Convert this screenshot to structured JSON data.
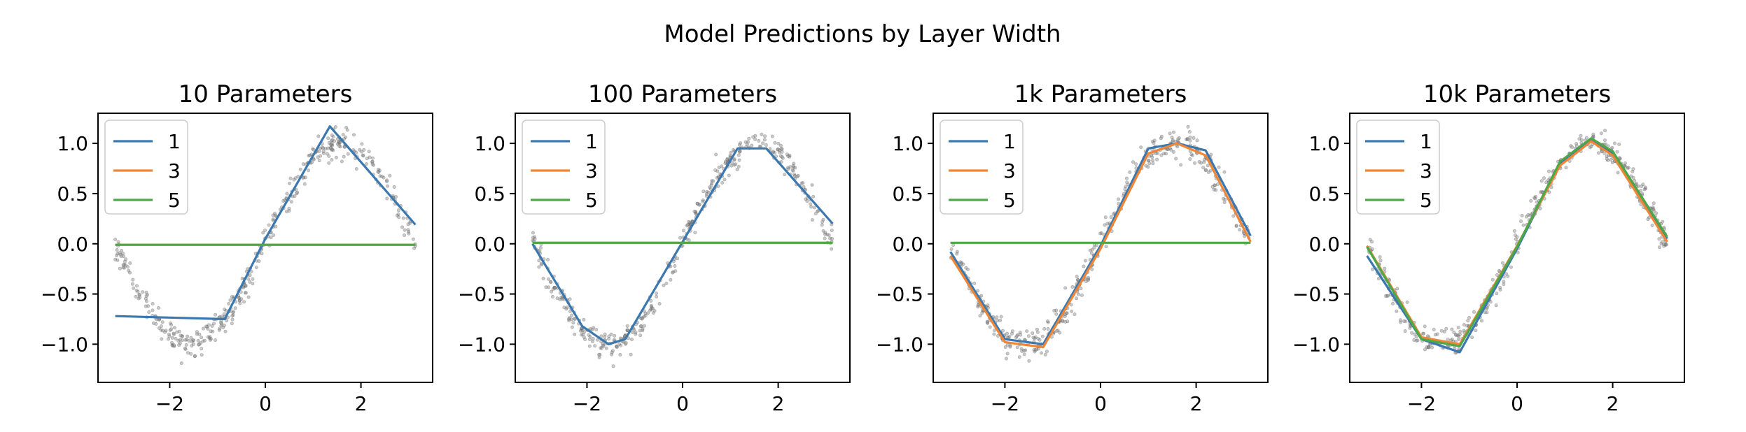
{
  "figure_title": "Model Predictions by Layer Width",
  "colors": {
    "1": "#3b78b0",
    "3": "#ef8636",
    "5": "#4da847",
    "scatter": "#666666"
  },
  "chart_data": [
    {
      "type": "line",
      "title": "10 Parameters",
      "xlim": [
        -3.5,
        3.5
      ],
      "ylim": [
        -1.38,
        1.3
      ],
      "xticks": [
        -2,
        0,
        2
      ],
      "xtick_labels": [
        "−2",
        "0",
        "2"
      ],
      "yticks": [
        -1.0,
        -0.5,
        0.0,
        0.5,
        1.0
      ],
      "ytick_labels": [
        "−1.0",
        "−0.5",
        "0.0",
        "0.5",
        "1.0"
      ],
      "legend": [
        "1",
        "3",
        "5"
      ],
      "background_scatter": "noisy samples of y = sin(x), x in [-pi, pi]",
      "series": [
        {
          "name": "1",
          "x": [
            -3.14,
            -0.85,
            0.0,
            1.35,
            3.14
          ],
          "y": [
            -0.72,
            -0.75,
            0.05,
            1.17,
            0.19
          ]
        },
        {
          "name": "3",
          "x": [
            -3.14,
            3.14
          ],
          "y": [
            -0.01,
            -0.01
          ]
        },
        {
          "name": "5",
          "x": [
            -3.14,
            3.14
          ],
          "y": [
            -0.01,
            -0.01
          ]
        }
      ]
    },
    {
      "type": "line",
      "title": "100 Parameters",
      "xlim": [
        -3.5,
        3.5
      ],
      "ylim": [
        -1.38,
        1.3
      ],
      "xticks": [
        -2,
        0,
        2
      ],
      "xtick_labels": [
        "−2",
        "0",
        "2"
      ],
      "yticks": [
        -1.0,
        -0.5,
        0.0,
        0.5,
        1.0
      ],
      "ytick_labels": [
        "−1.0",
        "−0.5",
        "0.0",
        "0.5",
        "1.0"
      ],
      "legend": [
        "1",
        "3",
        "5"
      ],
      "background_scatter": "noisy samples of y = sin(x), x in [-pi, pi]",
      "series": [
        {
          "name": "1",
          "x": [
            -3.14,
            -2.1,
            -1.55,
            -1.2,
            0.0,
            1.15,
            1.75,
            3.14
          ],
          "y": [
            0.0,
            -0.82,
            -1.0,
            -0.95,
            0.02,
            0.95,
            0.95,
            0.2
          ]
        },
        {
          "name": "3",
          "x": [
            -3.14,
            3.14
          ],
          "y": [
            0.01,
            0.01
          ]
        },
        {
          "name": "5",
          "x": [
            -3.14,
            3.14
          ],
          "y": [
            0.01,
            0.01
          ]
        }
      ]
    },
    {
      "type": "line",
      "title": "1k Parameters",
      "xlim": [
        -3.5,
        3.5
      ],
      "ylim": [
        -1.38,
        1.3
      ],
      "xticks": [
        -2,
        0,
        2
      ],
      "xtick_labels": [
        "−2",
        "0",
        "2"
      ],
      "yticks": [
        -1.0,
        -0.5,
        0.0,
        0.5,
        1.0
      ],
      "ytick_labels": [
        "−1.0",
        "−0.5",
        "0.0",
        "0.5",
        "1.0"
      ],
      "legend": [
        "1",
        "3",
        "5"
      ],
      "background_scatter": "noisy samples of y = sin(x), x in [-pi, pi]",
      "series": [
        {
          "name": "1",
          "x": [
            -3.14,
            -2.0,
            -1.2,
            0.0,
            1.0,
            1.6,
            2.2,
            3.14
          ],
          "y": [
            -0.08,
            -0.95,
            -1.0,
            -0.02,
            0.95,
            1.0,
            0.93,
            0.08
          ]
        },
        {
          "name": "3",
          "x": [
            -3.14,
            -2.0,
            -1.2,
            0.0,
            1.0,
            1.6,
            2.2,
            3.14
          ],
          "y": [
            -0.12,
            -0.98,
            -1.03,
            -0.05,
            0.9,
            1.0,
            0.88,
            0.02
          ]
        },
        {
          "name": "5",
          "x": [
            -3.14,
            3.14
          ],
          "y": [
            0.01,
            0.01
          ]
        }
      ]
    },
    {
      "type": "line",
      "title": "10k Parameters",
      "xlim": [
        -3.5,
        3.5
      ],
      "ylim": [
        -1.38,
        1.3
      ],
      "xticks": [
        -2,
        0,
        2
      ],
      "xtick_labels": [
        "−2",
        "0",
        "2"
      ],
      "yticks": [
        -1.0,
        -0.5,
        0.0,
        0.5,
        1.0
      ],
      "ytick_labels": [
        "−1.0",
        "−0.5",
        "0.0",
        "0.5",
        "1.0"
      ],
      "legend": [
        "1",
        "3",
        "5"
      ],
      "background_scatter": "noisy samples of y = sin(x), x in [-pi, pi]",
      "series": [
        {
          "name": "1",
          "x": [
            -3.14,
            -2.0,
            -1.2,
            0.0,
            0.9,
            1.55,
            2.0,
            3.14
          ],
          "y": [
            -0.12,
            -0.95,
            -1.08,
            -0.05,
            0.8,
            1.03,
            0.9,
            0.05
          ]
        },
        {
          "name": "3",
          "x": [
            -3.14,
            -2.0,
            -1.2,
            0.0,
            0.9,
            1.55,
            2.0,
            3.14
          ],
          "y": [
            -0.02,
            -0.93,
            -1.0,
            -0.02,
            0.78,
            1.02,
            0.88,
            0.02
          ]
        },
        {
          "name": "5",
          "x": [
            -3.14,
            -2.0,
            -1.2,
            0.0,
            0.9,
            1.55,
            2.0,
            3.14
          ],
          "y": [
            -0.03,
            -0.95,
            -1.02,
            -0.03,
            0.82,
            1.05,
            0.92,
            0.07
          ]
        }
      ]
    }
  ]
}
